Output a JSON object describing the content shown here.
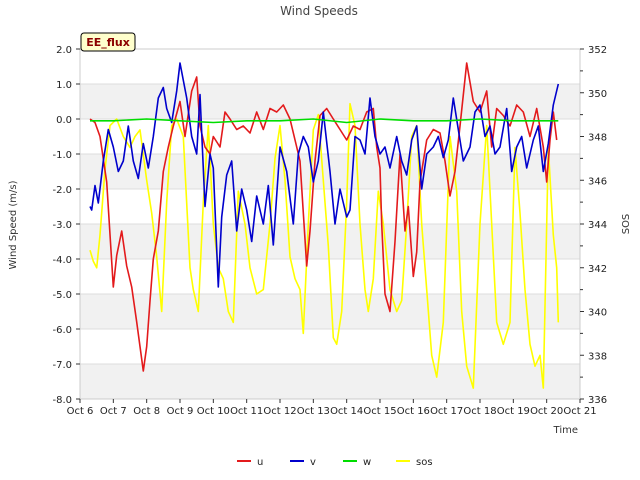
{
  "chart_data": {
    "type": "line",
    "title": "Wind Speeds",
    "badge": "EE_flux",
    "xlabel": "Time",
    "ylabel": "Wind Speed (m/s)",
    "y2label": "SOS",
    "xlim": [
      6,
      21
    ],
    "ylim": [
      -8,
      2
    ],
    "y2lim": [
      336,
      352
    ],
    "x_ticks": [
      {
        "v": 6,
        "label": "Oct 6"
      },
      {
        "v": 7,
        "label": "Oct 7"
      },
      {
        "v": 8,
        "label": "Oct 8"
      },
      {
        "v": 9,
        "label": "Oct 9"
      },
      {
        "v": 10,
        "label": "Oct 10"
      },
      {
        "v": 11,
        "label": "Oct 11"
      },
      {
        "v": 12,
        "label": "Oct 12"
      },
      {
        "v": 13,
        "label": "Oct 13"
      },
      {
        "v": 14,
        "label": "Oct 14"
      },
      {
        "v": 15,
        "label": "Oct 15"
      },
      {
        "v": 16,
        "label": "Oct 16"
      },
      {
        "v": 17,
        "label": "Oct 17"
      },
      {
        "v": 18,
        "label": "Oct 18"
      },
      {
        "v": 19,
        "label": "Oct 19"
      },
      {
        "v": 20,
        "label": "Oct 20"
      },
      {
        "v": 21,
        "label": "Oct 21"
      }
    ],
    "y_ticks": [
      {
        "v": 2,
        "label": "2.0"
      },
      {
        "v": 1,
        "label": "1.0"
      },
      {
        "v": 0,
        "label": "0.0"
      },
      {
        "v": -1,
        "label": "-1.0"
      },
      {
        "v": -2,
        "label": "-2.0"
      },
      {
        "v": -3,
        "label": "-3.0"
      },
      {
        "v": -4,
        "label": "-4.0"
      },
      {
        "v": -5,
        "label": "-5.0"
      },
      {
        "v": -6,
        "label": "-6.0"
      },
      {
        "v": -7,
        "label": "-7.0"
      },
      {
        "v": -8,
        "label": "-8.0"
      }
    ],
    "y2_ticks": [
      {
        "v": 352,
        "label": "352"
      },
      {
        "v": 350,
        "label": "350"
      },
      {
        "v": 348,
        "label": "348"
      },
      {
        "v": 346,
        "label": "346"
      },
      {
        "v": 344,
        "label": "344"
      },
      {
        "v": 342,
        "label": "342"
      },
      {
        "v": 340,
        "label": "340"
      },
      {
        "v": 338,
        "label": "338"
      },
      {
        "v": 336,
        "label": "336"
      }
    ],
    "series": [
      {
        "name": "u",
        "color": "#e31a1c",
        "axis": "left",
        "x": [
          6.3,
          6.45,
          6.6,
          6.8,
          7.0,
          7.1,
          7.25,
          7.4,
          7.55,
          7.7,
          7.8,
          7.9,
          8.0,
          8.1,
          8.2,
          8.35,
          8.5,
          8.65,
          8.8,
          9.0,
          9.15,
          9.35,
          9.5,
          9.6,
          9.75,
          9.9,
          10.0,
          10.2,
          10.35,
          10.5,
          10.7,
          10.9,
          11.1,
          11.3,
          11.5,
          11.7,
          11.9,
          12.1,
          12.3,
          12.5,
          12.6,
          12.8,
          12.9,
          13.05,
          13.2,
          13.4,
          13.6,
          13.8,
          14.0,
          14.2,
          14.4,
          14.6,
          14.8,
          14.9,
          15.0,
          15.05,
          15.15,
          15.3,
          15.45,
          15.6,
          15.75,
          15.85,
          16.0,
          16.1,
          16.2,
          16.4,
          16.6,
          16.8,
          16.95,
          17.1,
          17.25,
          17.4,
          17.6,
          17.8,
          18.0,
          18.2,
          18.35,
          18.5,
          18.7,
          18.9,
          19.1,
          19.3,
          19.5,
          19.7,
          19.9,
          20.0,
          20.1,
          20.2,
          20.3
        ],
        "values": [
          0.0,
          -0.1,
          -0.5,
          -1.8,
          -4.8,
          -3.9,
          -3.2,
          -4.2,
          -4.8,
          -5.8,
          -6.5,
          -7.2,
          -6.5,
          -5.2,
          -4.0,
          -3.2,
          -1.5,
          -0.8,
          -0.2,
          0.5,
          -0.5,
          0.8,
          1.2,
          -0.2,
          -0.8,
          -1.0,
          -0.5,
          -0.8,
          0.2,
          0.0,
          -0.3,
          -0.2,
          -0.4,
          0.2,
          -0.3,
          0.3,
          0.2,
          0.4,
          0.0,
          -0.8,
          -1.2,
          -4.2,
          -3.2,
          -1.2,
          0.1,
          0.3,
          0.0,
          -0.3,
          -0.6,
          -0.2,
          -0.3,
          0.2,
          0.3,
          -0.8,
          -1.4,
          -3.0,
          -5.0,
          -5.5,
          -3.5,
          -1.0,
          -3.2,
          -2.5,
          -4.5,
          -3.8,
          -1.8,
          -0.6,
          -0.3,
          -0.4,
          -1.2,
          -2.2,
          -1.5,
          -0.2,
          1.6,
          0.5,
          0.2,
          0.8,
          -0.8,
          0.3,
          0.1,
          -0.2,
          0.4,
          0.2,
          -0.5,
          0.3,
          -0.8,
          -1.8,
          -0.6,
          0.2,
          -0.6
        ]
      },
      {
        "name": "v",
        "color": "#0000cc",
        "axis": "left",
        "x": [
          6.3,
          6.35,
          6.45,
          6.55,
          6.7,
          6.85,
          7.0,
          7.15,
          7.3,
          7.45,
          7.6,
          7.75,
          7.9,
          8.05,
          8.2,
          8.35,
          8.5,
          8.6,
          8.75,
          8.9,
          9.0,
          9.2,
          9.35,
          9.5,
          9.6,
          9.75,
          9.9,
          10.0,
          10.15,
          10.25,
          10.4,
          10.55,
          10.7,
          10.85,
          11.0,
          11.15,
          11.3,
          11.5,
          11.65,
          11.8,
          12.0,
          12.2,
          12.4,
          12.55,
          12.7,
          12.85,
          13.0,
          13.15,
          13.3,
          13.5,
          13.65,
          13.8,
          14.0,
          14.1,
          14.25,
          14.4,
          14.55,
          14.7,
          14.85,
          15.0,
          15.15,
          15.3,
          15.5,
          15.65,
          15.8,
          15.95,
          16.1,
          16.25,
          16.4,
          16.6,
          16.75,
          16.9,
          17.05,
          17.2,
          17.35,
          17.5,
          17.7,
          17.85,
          18.0,
          18.15,
          18.3,
          18.45,
          18.6,
          18.8,
          18.95,
          19.1,
          19.25,
          19.4,
          19.6,
          19.75,
          19.9,
          20.05,
          20.2,
          20.35
        ],
        "values": [
          -2.5,
          -2.6,
          -1.9,
          -2.4,
          -1.2,
          -0.3,
          -0.8,
          -1.5,
          -1.2,
          -0.2,
          -1.2,
          -1.7,
          -0.7,
          -1.4,
          -0.5,
          0.6,
          0.9,
          0.3,
          -0.1,
          0.8,
          1.6,
          0.6,
          -0.5,
          -1.0,
          0.7,
          -2.5,
          -1.0,
          -1.4,
          -4.8,
          -2.8,
          -1.6,
          -1.2,
          -3.2,
          -2.0,
          -2.6,
          -3.5,
          -2.2,
          -3.0,
          -1.9,
          -3.6,
          -0.8,
          -1.5,
          -3.0,
          -1.0,
          -0.5,
          -0.8,
          -1.8,
          -1.2,
          0.2,
          -1.5,
          -3.0,
          -2.0,
          -2.8,
          -2.6,
          -0.5,
          -0.6,
          -1.0,
          0.6,
          -0.5,
          -1.0,
          -0.8,
          -1.4,
          -0.5,
          -1.2,
          -1.6,
          -0.6,
          -0.2,
          -2.0,
          -1.0,
          -0.8,
          -0.5,
          -1.1,
          -0.6,
          0.6,
          -0.3,
          -1.2,
          -0.8,
          0.2,
          0.4,
          -0.5,
          -0.2,
          -1.0,
          -0.8,
          0.3,
          -1.5,
          -0.8,
          -0.5,
          -1.4,
          -0.6,
          -0.2,
          -1.5,
          -0.7,
          0.4,
          1.0
        ]
      },
      {
        "name": "w",
        "color": "#00dd00",
        "axis": "left",
        "x": [
          6.3,
          7.0,
          8.0,
          9.0,
          10.0,
          11.0,
          12.0,
          13.0,
          14.0,
          15.0,
          16.0,
          17.0,
          18.0,
          19.0,
          20.0,
          20.35
        ],
        "values": [
          -0.05,
          -0.05,
          0.0,
          -0.05,
          -0.1,
          -0.05,
          -0.05,
          0.0,
          -0.1,
          0.0,
          -0.05,
          -0.05,
          0.0,
          -0.05,
          -0.05,
          -0.05
        ]
      },
      {
        "name": "sos",
        "color": "#ffff00",
        "axis": "right",
        "x": [
          6.3,
          6.4,
          6.5,
          6.6,
          6.75,
          6.9,
          7.1,
          7.3,
          7.5,
          7.65,
          7.8,
          8.0,
          8.15,
          8.3,
          8.45,
          8.6,
          8.75,
          8.9,
          9.1,
          9.3,
          9.4,
          9.55,
          9.7,
          9.85,
          10.0,
          10.15,
          10.3,
          10.45,
          10.6,
          10.75,
          10.95,
          11.1,
          11.3,
          11.5,
          11.7,
          11.85,
          12.0,
          12.15,
          12.3,
          12.45,
          12.6,
          12.7,
          12.85,
          13.0,
          13.15,
          13.3,
          13.45,
          13.6,
          13.7,
          13.85,
          14.0,
          14.1,
          14.25,
          14.4,
          14.55,
          14.65,
          14.8,
          14.95,
          15.1,
          15.3,
          15.5,
          15.65,
          15.8,
          15.95,
          16.1,
          16.25,
          16.4,
          16.55,
          16.7,
          16.9,
          17.1,
          17.3,
          17.45,
          17.6,
          17.8,
          18.0,
          18.2,
          18.35,
          18.5,
          18.7,
          18.9,
          19.05,
          19.2,
          19.35,
          19.5,
          19.65,
          19.8,
          19.9,
          20.05,
          20.2,
          20.3,
          20.35
        ],
        "values": [
          342.8,
          342.3,
          342.0,
          343.5,
          346.5,
          348.5,
          348.8,
          348.0,
          347.5,
          348.0,
          348.3,
          346.0,
          344.5,
          342.5,
          340.0,
          345.0,
          348.5,
          348.8,
          348.0,
          342.0,
          341.0,
          340.0,
          345.0,
          348.5,
          344.0,
          342.0,
          341.5,
          340.0,
          339.5,
          345.5,
          344.0,
          342.0,
          340.8,
          341.0,
          344.0,
          347.0,
          348.5,
          346.0,
          342.5,
          341.5,
          341.0,
          339.0,
          344.0,
          348.3,
          349.0,
          346.0,
          343.0,
          338.8,
          338.5,
          340.0,
          345.0,
          349.5,
          348.5,
          344.0,
          341.0,
          340.0,
          341.5,
          345.5,
          344.0,
          341.0,
          340.0,
          340.5,
          344.0,
          348.0,
          348.5,
          344.0,
          341.0,
          338.0,
          337.0,
          339.5,
          348.0,
          345.5,
          340.0,
          337.5,
          336.5,
          344.0,
          348.5,
          344.0,
          339.5,
          338.5,
          339.5,
          347.5,
          344.5,
          341.0,
          338.5,
          337.5,
          338.0,
          336.5,
          347.5,
          343.5,
          342.0,
          339.5
        ]
      }
    ]
  }
}
